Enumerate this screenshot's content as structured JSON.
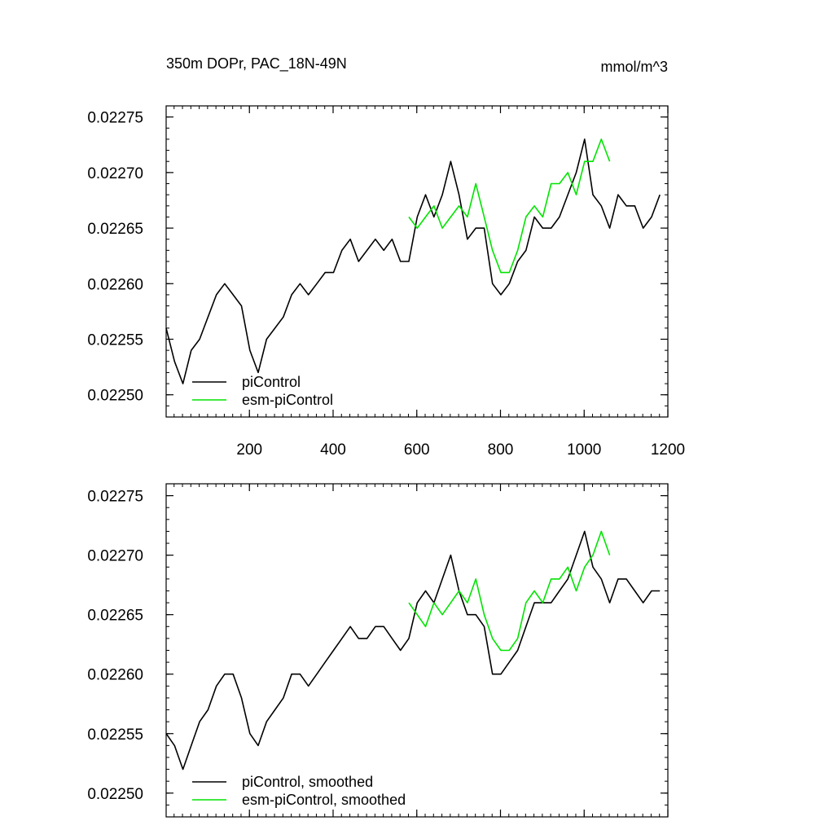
{
  "title_left": "350m DOPr, PAC_18N-49N",
  "title_right": "mmol/m^3",
  "colors": {
    "piControl": "#000000",
    "esm": "#00e400"
  },
  "chart_data": [
    {
      "type": "line",
      "panel": "top",
      "xlim": [
        1,
        1200
      ],
      "ylim": [
        0.02248,
        0.02276
      ],
      "x_ticks": [
        200,
        400,
        600,
        800,
        1000,
        1200
      ],
      "x_tick_labels": [
        "200",
        "400",
        "600",
        "800",
        "1000",
        "1200"
      ],
      "y_ticks": [
        0.0225,
        0.02255,
        0.0226,
        0.02265,
        0.0227,
        0.02275
      ],
      "y_tick_labels": [
        "0.02250",
        "0.02255",
        "0.02260",
        "0.02265",
        "0.02270",
        "0.02275"
      ],
      "legend": [
        "piControl",
        "esm-piControl"
      ],
      "series": [
        {
          "name": "piControl",
          "x_start": 1,
          "x_step": 20,
          "values": [
            0.02256,
            0.02253,
            0.02251,
            0.02254,
            0.02255,
            0.02257,
            0.02259,
            0.0226,
            0.02259,
            0.02258,
            0.02254,
            0.02252,
            0.02255,
            0.02256,
            0.02257,
            0.02259,
            0.0226,
            0.02259,
            0.0226,
            0.02261,
            0.02261,
            0.02263,
            0.02264,
            0.02262,
            0.02263,
            0.02264,
            0.02263,
            0.02264,
            0.02262,
            0.02262,
            0.02266,
            0.02268,
            0.02266,
            0.02268,
            0.02271,
            0.02268,
            0.02264,
            0.02265,
            0.02265,
            0.0226,
            0.02259,
            0.0226,
            0.02262,
            0.02263,
            0.02266,
            0.02265,
            0.02265,
            0.02266,
            0.02268,
            0.0227,
            0.02273,
            0.02268,
            0.02267,
            0.02265,
            0.02268,
            0.02267,
            0.02267,
            0.02265,
            0.02266,
            0.02268
          ]
        },
        {
          "name": "esm-piControl",
          "x_start": 581,
          "x_step": 20,
          "values": [
            0.02266,
            0.02265,
            0.02266,
            0.02267,
            0.02265,
            0.02266,
            0.02267,
            0.02266,
            0.02269,
            0.02266,
            0.02263,
            0.02261,
            0.02261,
            0.02263,
            0.02266,
            0.02267,
            0.02266,
            0.02269,
            0.02269,
            0.0227,
            0.02268,
            0.02271,
            0.02271,
            0.02273,
            0.02271
          ]
        }
      ]
    },
    {
      "type": "line",
      "panel": "bottom",
      "xlim": [
        1,
        1200
      ],
      "ylim": [
        0.02248,
        0.02276
      ],
      "x_ticks": [
        200,
        400,
        600,
        800,
        1000,
        1200
      ],
      "y_ticks": [
        0.0225,
        0.02255,
        0.0226,
        0.02265,
        0.0227,
        0.02275
      ],
      "y_tick_labels": [
        "0.02250",
        "0.02255",
        "0.02260",
        "0.02265",
        "0.02270",
        "0.02275"
      ],
      "legend": [
        "piControl, smoothed",
        "esm-piControl, smoothed"
      ],
      "series": [
        {
          "name": "piControl, smoothed",
          "x_start": 1,
          "x_step": 20,
          "values": [
            0.02255,
            0.02254,
            0.02252,
            0.02254,
            0.02256,
            0.02257,
            0.02259,
            0.0226,
            0.0226,
            0.02258,
            0.02255,
            0.02254,
            0.02256,
            0.02257,
            0.02258,
            0.0226,
            0.0226,
            0.02259,
            0.0226,
            0.02261,
            0.02262,
            0.02263,
            0.02264,
            0.02263,
            0.02263,
            0.02264,
            0.02264,
            0.02263,
            0.02262,
            0.02263,
            0.02266,
            0.02267,
            0.02266,
            0.02268,
            0.0227,
            0.02267,
            0.02265,
            0.02265,
            0.02264,
            0.0226,
            0.0226,
            0.02261,
            0.02262,
            0.02264,
            0.02266,
            0.02266,
            0.02266,
            0.02267,
            0.02268,
            0.0227,
            0.02272,
            0.02269,
            0.02268,
            0.02266,
            0.02268,
            0.02268,
            0.02267,
            0.02266,
            0.02267,
            0.02267
          ]
        },
        {
          "name": "esm-piControl, smoothed",
          "x_start": 581,
          "x_step": 20,
          "values": [
            0.02266,
            0.02265,
            0.02264,
            0.02266,
            0.02265,
            0.02266,
            0.02267,
            0.02266,
            0.02268,
            0.02265,
            0.02263,
            0.02262,
            0.02262,
            0.02263,
            0.02266,
            0.02267,
            0.02266,
            0.02268,
            0.02268,
            0.02269,
            0.02267,
            0.02269,
            0.0227,
            0.02272,
            0.0227
          ]
        }
      ]
    }
  ]
}
